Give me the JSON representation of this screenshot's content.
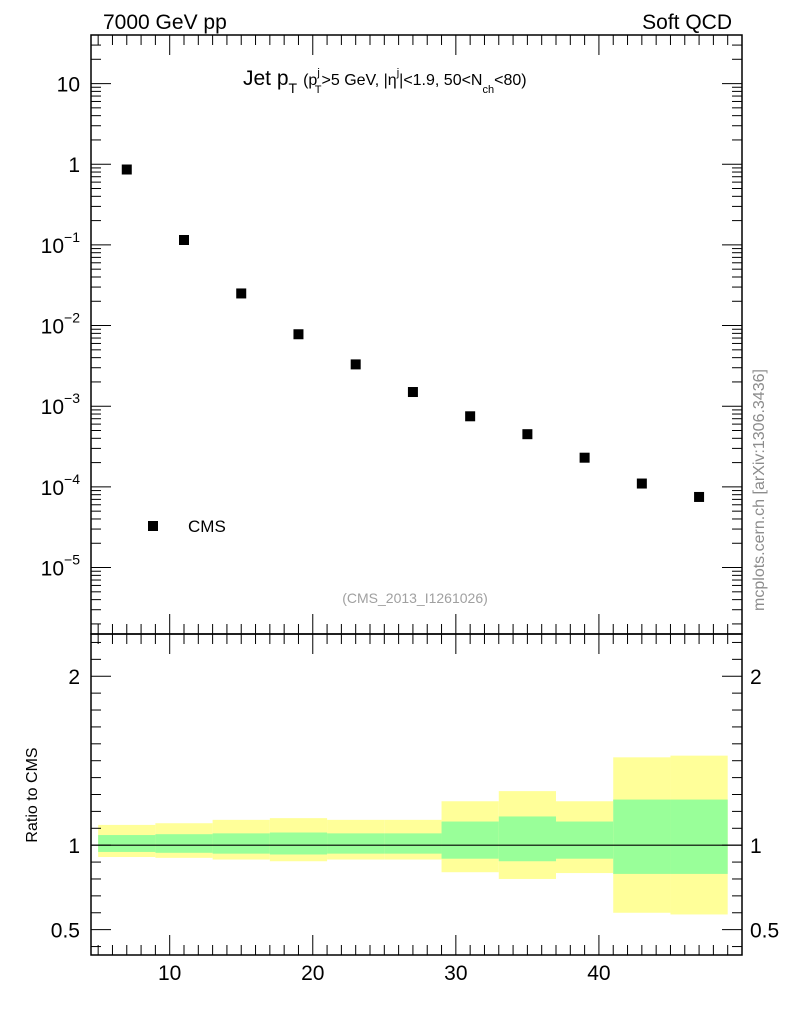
{
  "header": {
    "left": "7000 GeV pp",
    "right": "Soft QCD"
  },
  "side_label": "mcplots.cern.ch [arXiv:1306.3436]",
  "chart_data": [
    {
      "type": "scatter",
      "title_main": "Jet p",
      "title_sub_T": "T",
      "title_cut_open": "(p",
      "title_cut_sup_j": "j",
      "title_cut_sub_T": "T",
      "title_cut_mid1": ">5 GeV, |η",
      "title_cut_sup_j2": "j",
      "title_cut_mid2": "|<1.9, 50<N",
      "title_cut_sub_ch": "ch",
      "title_cut_close": "<80)",
      "watermark": "(CMS_2013_I1261026)",
      "y_scale": "log",
      "ylim": [
        1.5e-06,
        40
      ],
      "xlim": [
        4.5,
        50
      ],
      "y_tick_labels": [
        {
          "value": 10,
          "base": "10",
          "exp": ""
        },
        {
          "value": 1,
          "base": "1",
          "exp": ""
        },
        {
          "value": 0.1,
          "base": "10",
          "exp": "−1"
        },
        {
          "value": 0.01,
          "base": "10",
          "exp": "−2"
        },
        {
          "value": 0.001,
          "base": "10",
          "exp": "−3"
        },
        {
          "value": 0.0001,
          "base": "10",
          "exp": "−4"
        },
        {
          "value": 1e-05,
          "base": "10",
          "exp": "−5"
        }
      ],
      "legend": {
        "label": "CMS",
        "placement": "bottom-left"
      },
      "series": [
        {
          "name": "CMS",
          "x": [
            7,
            11,
            15,
            19,
            23,
            27,
            31,
            35,
            39,
            43,
            47
          ],
          "y": [
            0.86,
            0.115,
            0.025,
            0.0078,
            0.0033,
            0.0015,
            0.00075,
            0.00045,
            0.00023,
            0.00011,
            7.5e-05
          ]
        }
      ]
    },
    {
      "type": "area",
      "ylabel": "Ratio to CMS",
      "ylim": [
        0.35,
        2.25
      ],
      "xlim": [
        4.5,
        50
      ],
      "y_ticks": [
        {
          "value": 0.5,
          "label": "0.5"
        },
        {
          "value": 1,
          "label": "1"
        },
        {
          "value": 2,
          "label": "2"
        }
      ],
      "x_ticks": [
        {
          "value": 10,
          "label": "10"
        },
        {
          "value": 20,
          "label": "20"
        },
        {
          "value": 30,
          "label": "30"
        },
        {
          "value": 40,
          "label": "40"
        }
      ],
      "reference_line": 1,
      "bins": [
        {
          "lo": 5,
          "hi": 9,
          "stat": [
            0.96,
            1.06
          ],
          "total": [
            0.93,
            1.12
          ]
        },
        {
          "lo": 9,
          "hi": 13,
          "stat": [
            0.955,
            1.065
          ],
          "total": [
            0.925,
            1.13
          ]
        },
        {
          "lo": 13,
          "hi": 17,
          "stat": [
            0.95,
            1.07
          ],
          "total": [
            0.915,
            1.15
          ]
        },
        {
          "lo": 17,
          "hi": 21,
          "stat": [
            0.945,
            1.075
          ],
          "total": [
            0.905,
            1.16
          ]
        },
        {
          "lo": 21,
          "hi": 25,
          "stat": [
            0.95,
            1.07
          ],
          "total": [
            0.915,
            1.15
          ]
        },
        {
          "lo": 25,
          "hi": 29,
          "stat": [
            0.95,
            1.07
          ],
          "total": [
            0.915,
            1.15
          ]
        },
        {
          "lo": 29,
          "hi": 33,
          "stat": [
            0.92,
            1.14
          ],
          "total": [
            0.84,
            1.26
          ]
        },
        {
          "lo": 33,
          "hi": 37,
          "stat": [
            0.905,
            1.17
          ],
          "total": [
            0.8,
            1.32
          ]
        },
        {
          "lo": 37,
          "hi": 41,
          "stat": [
            0.92,
            1.14
          ],
          "total": [
            0.835,
            1.26
          ]
        },
        {
          "lo": 41,
          "hi": 45,
          "stat": [
            0.83,
            1.27
          ],
          "total": [
            0.6,
            1.52
          ]
        },
        {
          "lo": 45,
          "hi": 49,
          "stat": [
            0.83,
            1.27
          ],
          "total": [
            0.59,
            1.53
          ]
        }
      ],
      "colors": {
        "stat": "#99ff99",
        "total": "#ffff99",
        "line": "#000000"
      }
    }
  ]
}
